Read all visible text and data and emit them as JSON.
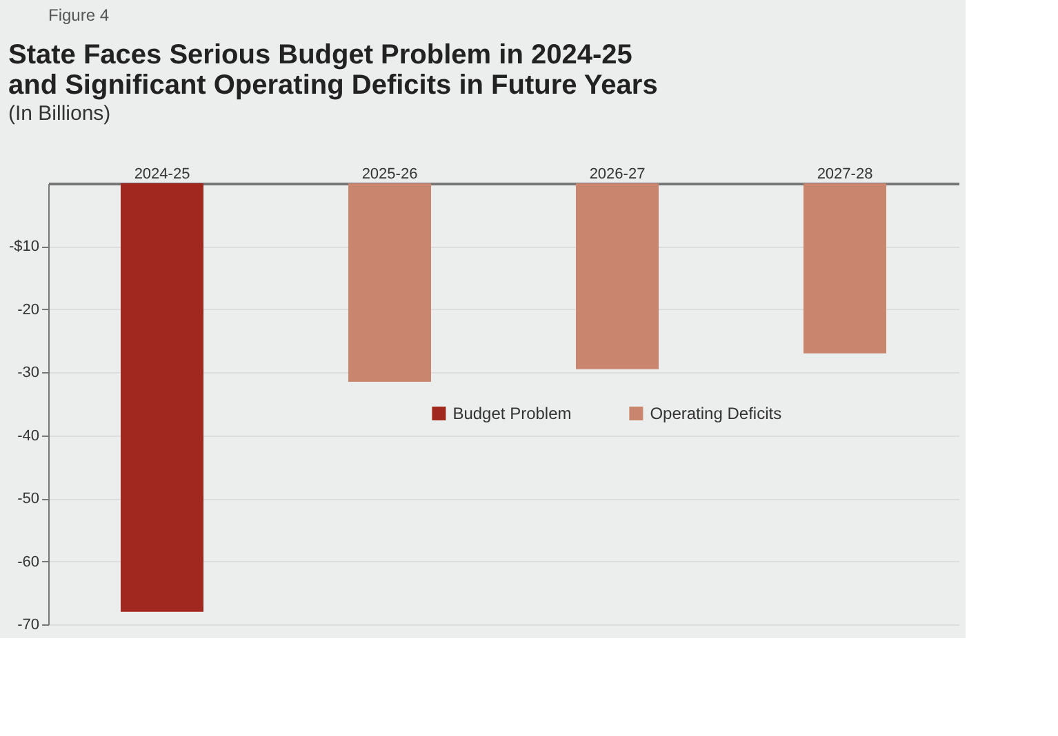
{
  "chart_data": {
    "type": "bar",
    "title": "State Faces Serious Budget Problem in 2024-25\nand Significant Operating Deficits in Future Years",
    "subtitle": "(In Billions)",
    "annotations": [
      "Figure 4"
    ],
    "categories": [
      "2024-25",
      "2025-26",
      "2026-27",
      "2027-28"
    ],
    "series": [
      {
        "name": "Budget Problem",
        "color": "#a0281e",
        "values": [
          -68,
          null,
          null,
          null
        ]
      },
      {
        "name": "Operating Deficits",
        "color": "#c9856d",
        "values": [
          null,
          -31.5,
          -29.5,
          -27
        ]
      }
    ],
    "ylim": [
      -70,
      0
    ],
    "yticks": [
      {
        "value": -10,
        "label": "-$10"
      },
      -20,
      -30,
      -40,
      -50,
      -60,
      -70
    ],
    "grid": "y",
    "legend": "right"
  }
}
